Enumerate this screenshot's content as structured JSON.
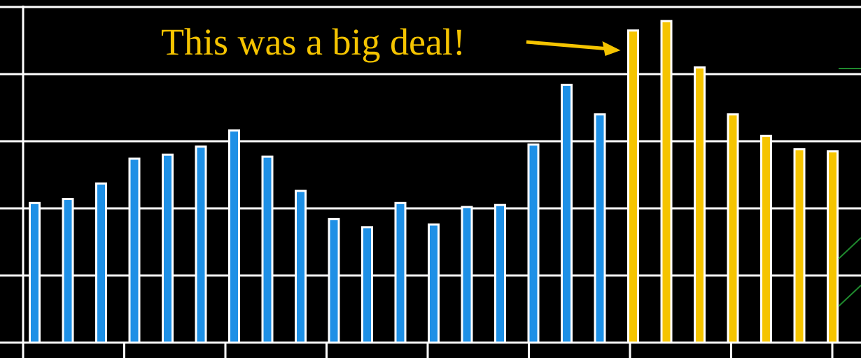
{
  "chart_data": {
    "type": "bar",
    "title": "",
    "xlabel": "",
    "ylabel": "",
    "ylim": [
      0,
      5
    ],
    "grid": true,
    "legend": "none",
    "series": [
      {
        "name": "",
        "color": "#1E90E6",
        "values": [
          2.08,
          2.14,
          2.37,
          2.74,
          2.8,
          2.92,
          3.16,
          2.77,
          2.26,
          1.84,
          1.72,
          2.08,
          1.76,
          2.02,
          2.05,
          2.95,
          3.84,
          3.4
        ]
      },
      {
        "name": "",
        "color": "#F5C400",
        "values": [
          4.65,
          4.79,
          4.1,
          3.4,
          3.08,
          2.88,
          2.85
        ]
      }
    ],
    "annotations": [
      {
        "text": "This was a big deal!",
        "color": "#F5C400",
        "points_to_value": 4.65
      }
    ]
  },
  "colors": {
    "background": "#000000",
    "axis": "#FFFFFF",
    "grid": "#FFFFFF",
    "bar_outline": "#FFFFFF",
    "accent_line": "#1F8A2E"
  }
}
